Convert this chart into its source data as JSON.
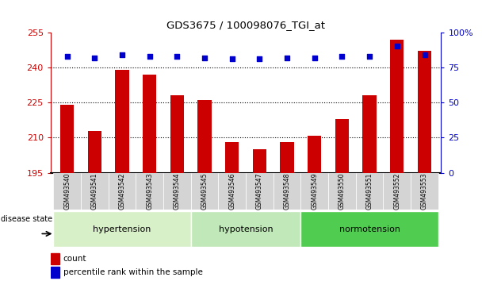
{
  "title": "GDS3675 / 100098076_TGI_at",
  "samples": [
    "GSM493540",
    "GSM493541",
    "GSM493542",
    "GSM493543",
    "GSM493544",
    "GSM493545",
    "GSM493546",
    "GSM493547",
    "GSM493548",
    "GSM493549",
    "GSM493550",
    "GSM493551",
    "GSM493552",
    "GSM493553"
  ],
  "counts": [
    224,
    213,
    239,
    237,
    228,
    226,
    208,
    205,
    208,
    211,
    218,
    228,
    252,
    247
  ],
  "percentiles": [
    83,
    82,
    84,
    83,
    83,
    82,
    81,
    81,
    82,
    82,
    83,
    83,
    90,
    84
  ],
  "groups": [
    {
      "label": "hypertension",
      "start": 0,
      "end": 4,
      "color": "#d8f0c8"
    },
    {
      "label": "hypotension",
      "start": 5,
      "end": 8,
      "color": "#c0e8b8"
    },
    {
      "label": "normotension",
      "start": 9,
      "end": 13,
      "color": "#50cc50"
    }
  ],
  "ymin": 195,
  "ymax": 255,
  "yticks_left": [
    195,
    210,
    225,
    240,
    255
  ],
  "yticks_right": [
    0,
    25,
    50,
    75,
    100
  ],
  "bar_color": "#cc0000",
  "dot_color": "#0000cc",
  "legend_count": "count",
  "legend_pct": "percentile rank within the sample",
  "disease_state_label": "disease state"
}
